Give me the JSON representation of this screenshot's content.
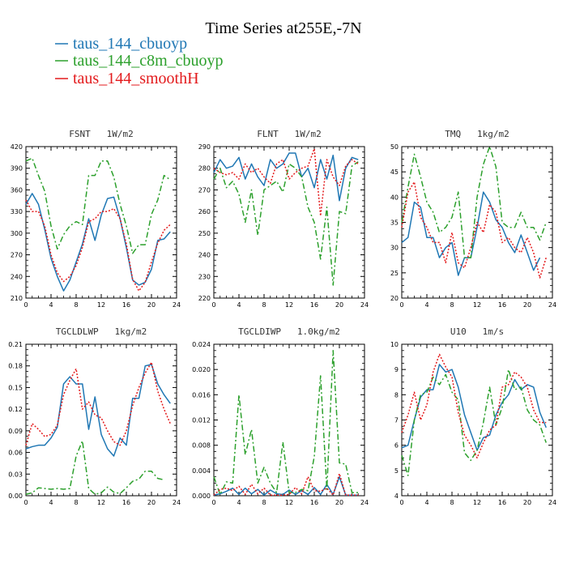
{
  "figure": {
    "title": "Time Series at255E,-7N"
  },
  "legend": [
    {
      "name": "taus_144_cbuoyp",
      "color": "#1f77b4"
    },
    {
      "name": "taus_144_c8m_cbuoyp",
      "color": "#2ca02c"
    },
    {
      "name": "taus_144_smoothH",
      "color": "#e31a1c"
    }
  ],
  "chart_data": [
    {
      "type": "line",
      "title": "FSNT   1W/m2",
      "x": [
        0,
        1,
        2,
        3,
        4,
        5,
        6,
        7,
        8,
        9,
        10,
        11,
        12,
        13,
        14,
        15,
        16,
        17,
        18,
        19,
        20,
        21,
        22,
        23
      ],
      "xlim": [
        0,
        24
      ],
      "xticks": [
        0,
        4,
        8,
        12,
        16,
        20,
        24
      ],
      "ylim": [
        210,
        420
      ],
      "yticks": [
        210,
        240,
        270,
        300,
        330,
        360,
        390,
        420
      ],
      "series": [
        {
          "name": "taus_144_cbuoyp",
          "values": [
            340,
            355,
            340,
            305,
            265,
            240,
            220,
            235,
            260,
            285,
            320,
            290,
            325,
            348,
            350,
            320,
            280,
            235,
            228,
            232,
            250,
            290,
            292,
            302
          ]
        },
        {
          "name": "taus_144_c8m_cbuoyp",
          "values": [
            400,
            404,
            380,
            358,
            310,
            278,
            298,
            310,
            316,
            312,
            380,
            380,
            400,
            400,
            378,
            340,
            310,
            272,
            284,
            284,
            326,
            346,
            380,
            374
          ]
        },
        {
          "name": "taus_144_smoothH",
          "values": [
            346,
            330,
            330,
            310,
            270,
            245,
            233,
            240,
            255,
            280,
            316,
            320,
            330,
            330,
            334,
            320,
            285,
            236,
            220,
            232,
            260,
            286,
            304,
            312
          ]
        }
      ]
    },
    {
      "type": "line",
      "title": "FLNT   1W/m2",
      "x": [
        0,
        1,
        2,
        3,
        4,
        5,
        6,
        7,
        8,
        9,
        10,
        11,
        12,
        13,
        14,
        15,
        16,
        17,
        18,
        19,
        20,
        21,
        22,
        23
      ],
      "xlim": [
        0,
        24
      ],
      "xticks": [
        0,
        4,
        8,
        12,
        16,
        20,
        24
      ],
      "ylim": [
        220,
        290
      ],
      "yticks": [
        220,
        230,
        240,
        250,
        260,
        270,
        280,
        290
      ],
      "series": [
        {
          "name": "taus_144_cbuoyp",
          "values": [
            278,
            284,
            280,
            281,
            285,
            275,
            282,
            276,
            272,
            284,
            280,
            282,
            287,
            287,
            276,
            280,
            271,
            284,
            275,
            286,
            265,
            280,
            285,
            284
          ]
        },
        {
          "name": "taus_144_c8m_cbuoyp",
          "values": [
            275,
            280,
            271,
            274,
            268,
            255,
            270,
            249,
            270,
            272,
            274,
            269,
            282,
            280,
            276,
            262,
            255,
            238,
            262,
            226,
            260,
            259,
            281,
            283
          ]
        },
        {
          "name": "taus_144_smoothH",
          "values": [
            280,
            278,
            277,
            278,
            275,
            282,
            278,
            280,
            276,
            273,
            282,
            284,
            275,
            278,
            280,
            281,
            289,
            258,
            284,
            276,
            272,
            281,
            284,
            282
          ]
        }
      ]
    },
    {
      "type": "line",
      "title": "TMQ   1kg/m2",
      "x": [
        0,
        1,
        2,
        3,
        4,
        5,
        6,
        7,
        8,
        9,
        10,
        11,
        12,
        13,
        14,
        15,
        16,
        17,
        18,
        19,
        20,
        21,
        22,
        23
      ],
      "xlim": [
        0,
        24
      ],
      "xticks": [
        0,
        4,
        8,
        12,
        16,
        20,
        24
      ],
      "ylim": [
        20,
        50
      ],
      "yticks": [
        20,
        25,
        30,
        35,
        40,
        45,
        50
      ],
      "series": [
        {
          "name": "taus_144_cbuoyp",
          "values": [
            31,
            32,
            39,
            38,
            32,
            32,
            28,
            30,
            31,
            24.5,
            28,
            28,
            34,
            41,
            39,
            35.5,
            34,
            31,
            29,
            32.5,
            29,
            25.5,
            28,
            null
          ]
        },
        {
          "name": "taus_144_c8m_cbuoyp",
          "values": [
            35,
            42,
            48.5,
            44,
            39,
            37,
            33,
            34,
            36,
            41,
            28,
            28,
            40,
            46.5,
            50,
            46,
            35,
            34,
            34,
            37,
            34,
            34,
            31.5,
            35
          ]
        },
        {
          "name": "taus_144_smoothH",
          "values": [
            34,
            41,
            43,
            36,
            34,
            31,
            31,
            27,
            33,
            27,
            26,
            30,
            35,
            33,
            38.5,
            37,
            31,
            32,
            30,
            29,
            32,
            29,
            24,
            28
          ]
        }
      ]
    },
    {
      "type": "line",
      "title": "TGCLDLWP   1kg/m2",
      "x": [
        0,
        1,
        2,
        3,
        4,
        5,
        6,
        7,
        8,
        9,
        10,
        11,
        12,
        13,
        14,
        15,
        16,
        17,
        18,
        19,
        20,
        21,
        22,
        23
      ],
      "xlim": [
        0,
        24
      ],
      "xticks": [
        0,
        4,
        8,
        12,
        16,
        20,
        24
      ],
      "ylim": [
        0,
        0.21
      ],
      "yticks": [
        0.0,
        0.03,
        0.06,
        0.09,
        0.12,
        0.15,
        0.18,
        0.21
      ],
      "series": [
        {
          "name": "taus_144_cbuoyp",
          "values": [
            0.065,
            0.068,
            0.07,
            0.07,
            0.08,
            0.095,
            0.155,
            0.165,
            0.155,
            0.155,
            0.092,
            0.137,
            0.085,
            0.065,
            0.055,
            0.08,
            0.07,
            0.135,
            0.135,
            0.18,
            0.182,
            0.155,
            0.14,
            0.128
          ]
        },
        {
          "name": "taus_144_c8m_cbuoyp",
          "values": [
            0.002,
            0.004,
            0.011,
            0.01,
            0.009,
            0.01,
            0.009,
            0.01,
            0.055,
            0.076,
            0.01,
            0.002,
            0.004,
            0.012,
            0.005,
            0.003,
            0.011,
            0.02,
            0.023,
            0.034,
            0.034,
            0.024,
            0.022,
            null
          ]
        },
        {
          "name": "taus_144_smoothH",
          "values": [
            0.07,
            0.1,
            0.092,
            0.082,
            0.085,
            0.098,
            0.14,
            0.16,
            0.176,
            0.12,
            0.13,
            0.112,
            0.108,
            0.09,
            0.075,
            0.07,
            0.09,
            0.125,
            0.15,
            0.17,
            0.185,
            0.145,
            0.12,
            0.1
          ]
        }
      ]
    },
    {
      "type": "line",
      "title": "TGCLDIWP   1.0kg/m2",
      "x": [
        0,
        1,
        2,
        3,
        4,
        5,
        6,
        7,
        8,
        9,
        10,
        11,
        12,
        13,
        14,
        15,
        16,
        17,
        18,
        19,
        20,
        21,
        22,
        23
      ],
      "xlim": [
        0,
        24
      ],
      "xticks": [
        0,
        4,
        8,
        12,
        16,
        20,
        24
      ],
      "ylim": [
        0,
        0.024
      ],
      "yticks": [
        0.0,
        0.004,
        0.008,
        0.012,
        0.016,
        0.02,
        0.024
      ],
      "series": [
        {
          "name": "taus_144_cbuoyp",
          "values": [
            0.0001,
            0.0003,
            0.0007,
            0.0012,
            0.0002,
            0.0012,
            0.0003,
            0.001,
            0.0001,
            0.0009,
            0.0003,
            0.0002,
            0.0009,
            0.0002,
            0.0008,
            0.0002,
            0.0013,
            0.0002,
            0.0018,
            0.0002,
            0.003,
            0.0001,
            0.0001,
            0.0001
          ]
        },
        {
          "name": "taus_144_c8m_cbuoyp",
          "values": [
            0.003,
            0.0002,
            0.0022,
            0.002,
            0.016,
            0.0065,
            0.0105,
            0.002,
            0.0045,
            0.002,
            0.0005,
            0.0085,
            0.0005,
            0.0005,
            0.001,
            0.0008,
            0.0062,
            0.019,
            0.001,
            0.023,
            0.0052,
            0.005,
            0.0005,
            0.0005
          ]
        },
        {
          "name": "taus_144_smoothH",
          "values": [
            0.0001,
            0.001,
            0.0012,
            0.0008,
            0.0015,
            0.0002,
            0.0018,
            0.0003,
            0.0012,
            0.0001,
            0.0001,
            0.0001,
            0.0002,
            0.0013,
            0.0003,
            0.003,
            0.0008,
            0.0007,
            0.0012,
            0.0001,
            0.0035,
            0.0001,
            0.0001,
            0.0001
          ]
        }
      ]
    },
    {
      "type": "line",
      "title": "U10   1m/s",
      "x": [
        0,
        1,
        2,
        3,
        4,
        5,
        6,
        7,
        8,
        9,
        10,
        11,
        12,
        13,
        14,
        15,
        16,
        17,
        18,
        19,
        20,
        21,
        22,
        23
      ],
      "xlim": [
        0,
        24
      ],
      "xticks": [
        0,
        4,
        8,
        12,
        16,
        20,
        24
      ],
      "ylim": [
        4,
        10
      ],
      "yticks": [
        4,
        5,
        6,
        7,
        8,
        9,
        10
      ],
      "series": [
        {
          "name": "taus_144_cbuoyp",
          "values": [
            5.9,
            6.0,
            7.0,
            7.9,
            8.2,
            8.2,
            9.2,
            8.9,
            9.0,
            8.3,
            7.2,
            6.5,
            5.8,
            6.3,
            6.4,
            7.2,
            7.7,
            8.0,
            8.6,
            8.2,
            8.4,
            8.3,
            7.3,
            6.7
          ]
        },
        {
          "name": "taus_144_c8m_cbuoyp",
          "values": [
            5.6,
            4.8,
            7.0,
            8.0,
            8.1,
            8.7,
            8.4,
            8.8,
            8.1,
            7.8,
            5.7,
            5.4,
            5.8,
            6.9,
            8.3,
            6.8,
            7.5,
            9.0,
            8.2,
            8.3,
            7.4,
            7.0,
            6.8,
            6.1
          ]
        },
        {
          "name": "taus_144_smoothH",
          "values": [
            6.5,
            7.2,
            8.1,
            7.0,
            7.6,
            8.9,
            9.6,
            9.1,
            8.7,
            7.3,
            6.4,
            6.0,
            5.5,
            6.1,
            6.6,
            6.8,
            8.3,
            8.4,
            8.9,
            8.7,
            8.3,
            7.4,
            6.9,
            6.9
          ]
        }
      ]
    }
  ]
}
